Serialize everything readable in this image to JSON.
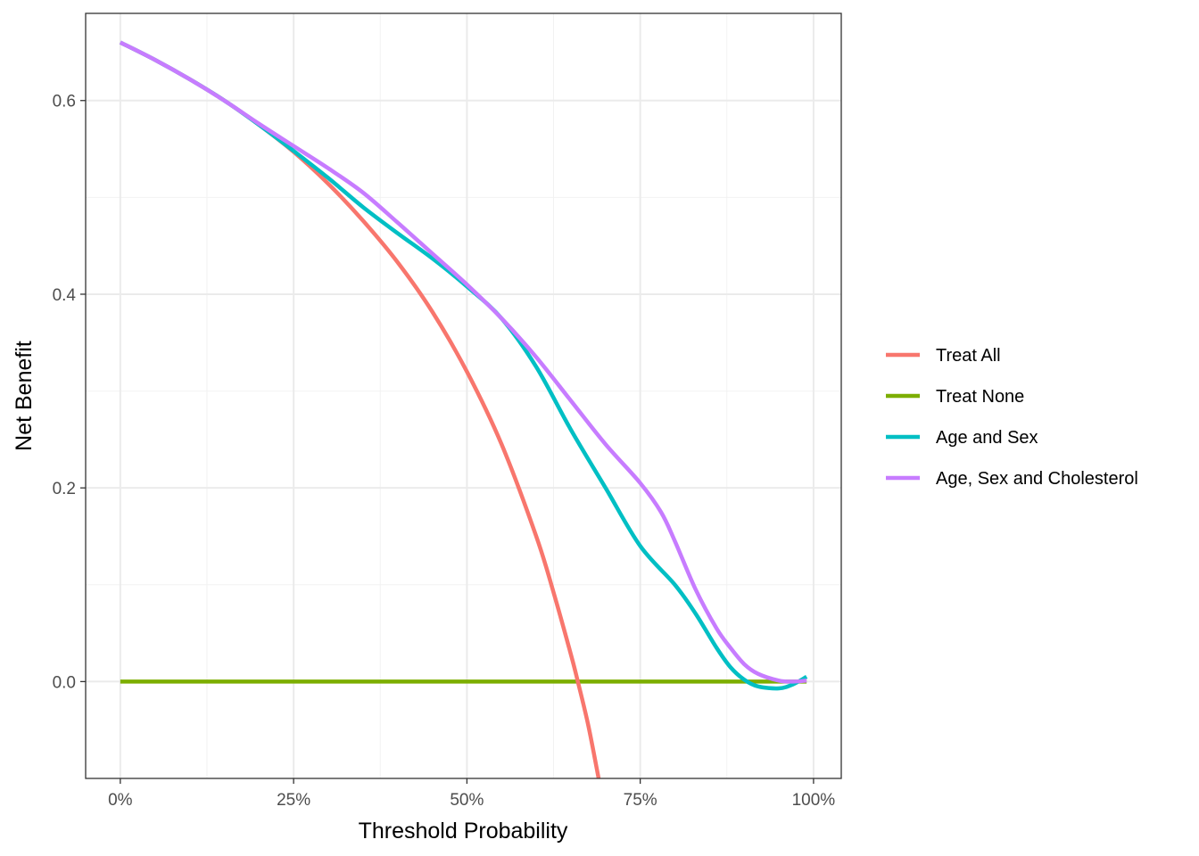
{
  "chart_data": {
    "type": "line",
    "xlabel": "Threshold Probability",
    "ylabel": "Net Benefit",
    "xlim": [
      -0.05,
      1.04
    ],
    "ylim": [
      -0.1,
      0.69
    ],
    "x_ticks": [
      {
        "value": 0.0,
        "label": "0%"
      },
      {
        "value": 0.25,
        "label": "25%"
      },
      {
        "value": 0.5,
        "label": "50%"
      },
      {
        "value": 0.75,
        "label": "75%"
      },
      {
        "value": 1.0,
        "label": "100%"
      }
    ],
    "y_ticks": [
      {
        "value": 0.0,
        "label": "0.0"
      },
      {
        "value": 0.2,
        "label": "0.2"
      },
      {
        "value": 0.4,
        "label": "0.4"
      },
      {
        "value": 0.6,
        "label": "0.6"
      }
    ],
    "grid": true,
    "legend_position": "right",
    "series": [
      {
        "name": "Treat All",
        "color": "#F8766D",
        "points": [
          [
            0.0,
            0.66
          ],
          [
            0.05,
            0.642
          ],
          [
            0.1,
            0.622
          ],
          [
            0.15,
            0.6
          ],
          [
            0.2,
            0.575
          ],
          [
            0.25,
            0.547
          ],
          [
            0.3,
            0.514
          ],
          [
            0.35,
            0.476
          ],
          [
            0.4,
            0.433
          ],
          [
            0.45,
            0.382
          ],
          [
            0.5,
            0.32
          ],
          [
            0.55,
            0.245
          ],
          [
            0.6,
            0.15
          ],
          [
            0.625,
            0.092
          ],
          [
            0.65,
            0.028
          ],
          [
            0.66,
            0.0
          ],
          [
            0.675,
            -0.045
          ],
          [
            0.69,
            -0.1
          ]
        ]
      },
      {
        "name": "Treat None",
        "color": "#7CAE00",
        "points": [
          [
            0.0,
            0.0
          ],
          [
            0.99,
            0.0
          ]
        ]
      },
      {
        "name": "Age and Sex",
        "color": "#00BFC4",
        "points": [
          [
            0.0,
            0.66
          ],
          [
            0.05,
            0.642
          ],
          [
            0.1,
            0.622
          ],
          [
            0.15,
            0.6
          ],
          [
            0.2,
            0.575
          ],
          [
            0.25,
            0.548
          ],
          [
            0.3,
            0.52
          ],
          [
            0.35,
            0.49
          ],
          [
            0.4,
            0.463
          ],
          [
            0.45,
            0.437
          ],
          [
            0.5,
            0.408
          ],
          [
            0.55,
            0.375
          ],
          [
            0.6,
            0.325
          ],
          [
            0.65,
            0.26
          ],
          [
            0.7,
            0.2
          ],
          [
            0.75,
            0.14
          ],
          [
            0.8,
            0.1
          ],
          [
            0.83,
            0.07
          ],
          [
            0.86,
            0.035
          ],
          [
            0.88,
            0.015
          ],
          [
            0.9,
            0.002
          ],
          [
            0.92,
            -0.005
          ],
          [
            0.95,
            -0.007
          ],
          [
            0.97,
            -0.003
          ],
          [
            0.99,
            0.005
          ]
        ]
      },
      {
        "name": "Age, Sex and Cholesterol",
        "color": "#C77CFF",
        "points": [
          [
            0.0,
            0.66
          ],
          [
            0.05,
            0.642
          ],
          [
            0.1,
            0.622
          ],
          [
            0.15,
            0.6
          ],
          [
            0.2,
            0.576
          ],
          [
            0.25,
            0.553
          ],
          [
            0.3,
            0.53
          ],
          [
            0.35,
            0.505
          ],
          [
            0.4,
            0.474
          ],
          [
            0.45,
            0.442
          ],
          [
            0.5,
            0.41
          ],
          [
            0.55,
            0.375
          ],
          [
            0.6,
            0.335
          ],
          [
            0.65,
            0.29
          ],
          [
            0.7,
            0.245
          ],
          [
            0.75,
            0.205
          ],
          [
            0.78,
            0.175
          ],
          [
            0.8,
            0.145
          ],
          [
            0.83,
            0.095
          ],
          [
            0.86,
            0.055
          ],
          [
            0.88,
            0.035
          ],
          [
            0.9,
            0.018
          ],
          [
            0.92,
            0.008
          ],
          [
            0.95,
            0.001
          ],
          [
            0.97,
            0.0
          ],
          [
            0.99,
            0.001
          ]
        ]
      }
    ]
  }
}
